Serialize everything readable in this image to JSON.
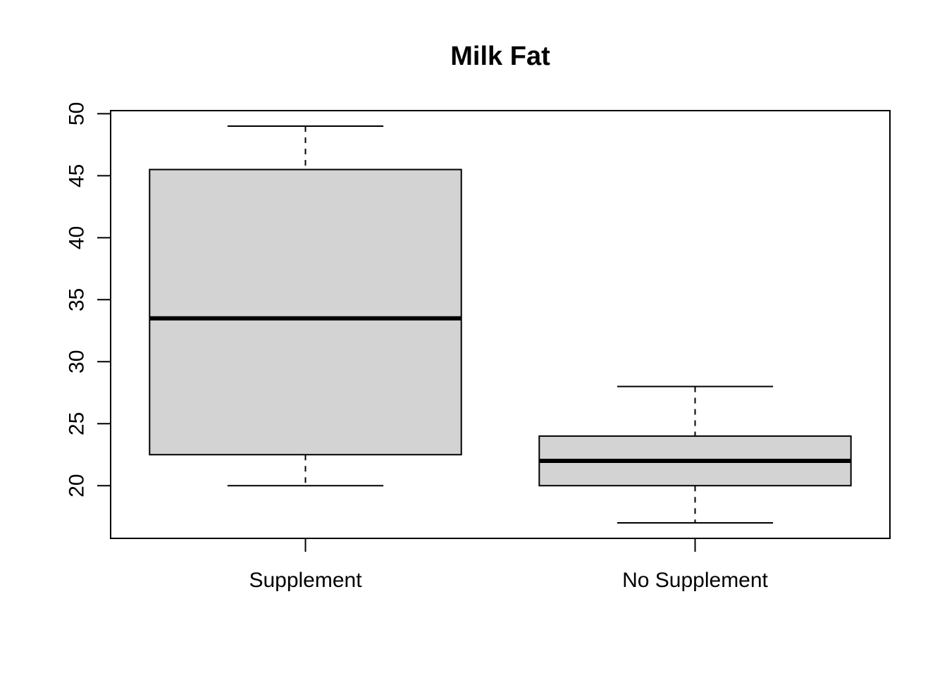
{
  "chart_data": {
    "type": "box",
    "title": "Milk Fat",
    "xlabel": "",
    "ylabel": "",
    "categories": [
      "Supplement",
      "No Supplement"
    ],
    "boxes": [
      {
        "category": "Supplement",
        "min": 20,
        "q1": 22.5,
        "median": 33.5,
        "q3": 45.5,
        "max": 49
      },
      {
        "category": "No Supplement",
        "min": 17,
        "q1": 20,
        "median": 22,
        "q3": 24,
        "max": 28
      }
    ],
    "ylim": [
      15.75,
      50.25
    ],
    "yticks": [
      "20",
      "25",
      "30",
      "35",
      "40",
      "45",
      "50"
    ],
    "grid": false,
    "legend": "none",
    "colors": {
      "box_fill": "#d3d3d3",
      "stroke": "#000000",
      "background": "#ffffff"
    }
  }
}
